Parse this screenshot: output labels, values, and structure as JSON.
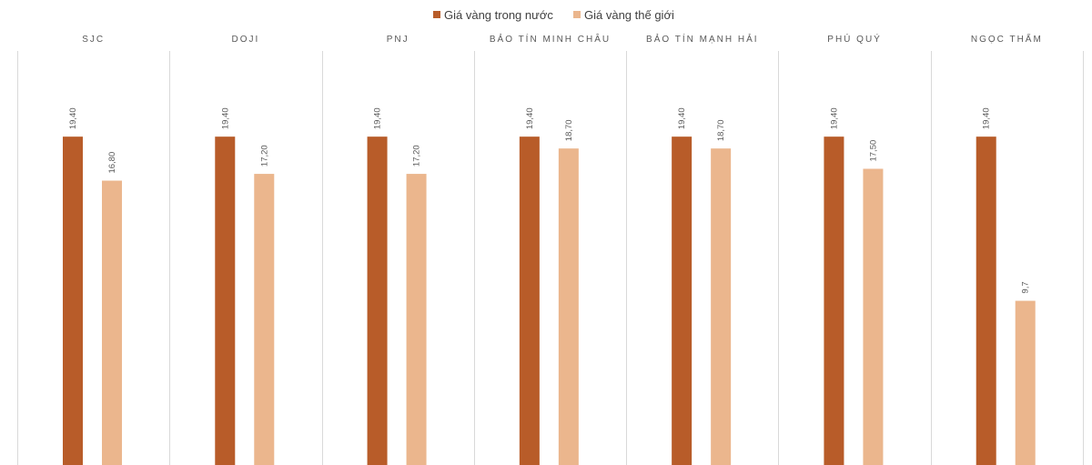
{
  "chart_data": {
    "type": "bar",
    "title": "",
    "xlabel": "",
    "ylabel": "",
    "ylim": [
      0,
      22
    ],
    "grid": false,
    "legend_position": "top-center",
    "categories": [
      "SJC",
      "DOJI",
      "PNJ",
      "BẢO TÍN MINH CHÂU",
      "BẢO TÍN MẠNH HẢI",
      "PHÚ QUÝ",
      "NGỌC THẨM"
    ],
    "series": [
      {
        "name": "Giá vàng trong nước",
        "color": "#b85c29",
        "values": [
          19.4,
          19.4,
          19.4,
          19.4,
          19.4,
          19.4,
          19.4
        ],
        "labels": [
          "19,40",
          "19,40",
          "19,40",
          "19,40",
          "19,40",
          "19,40",
          "19,40"
        ]
      },
      {
        "name": "Giá vàng thế giới",
        "color": "#ebb68d",
        "values": [
          16.8,
          17.2,
          17.2,
          18.7,
          18.7,
          17.5,
          9.7
        ],
        "labels": [
          "16,80",
          "17,20",
          "17,20",
          "18,70",
          "18,70",
          "17,50",
          "9,7"
        ]
      }
    ]
  }
}
